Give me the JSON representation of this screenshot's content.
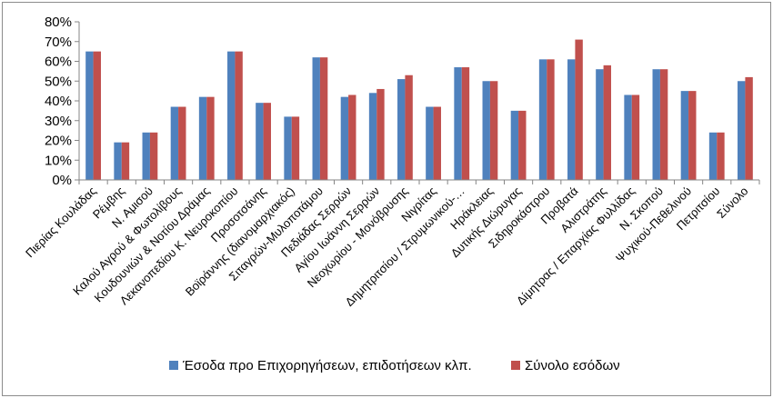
{
  "chart_data": {
    "type": "bar",
    "categories": [
      "Πιερίας Κουλάδας",
      "Ρέμβης",
      "Ν. Αμισού",
      "Καλού Αγρού & Φωτολίβους",
      "Κουδουνιών & Νοτίου Δράμας",
      "Λεκανοπεδίου Κ. Νευροκοπίου",
      "Προσοτσάνης",
      "Βοϊράννης (διανομαρχιακός)",
      "Σιταγρών-Μυλοποτάμου",
      "Πεδιάδας Σερρών",
      "Αγίου Ιωάννη Σερρών",
      "Νεοχωρίου - Μονόβρυσης",
      "Νιγρίτας",
      "Δημητριτσίου / Στρυμωνικού-…",
      "Ηράκλειας",
      "Δυτικής Διώρυγας",
      "Σιδηροκάστρου",
      "Προβατά",
      "Αλιστράτης",
      "Δίμητρας / Επαρχίας Φυλλίδας",
      "Ν. Σκοπού",
      "Ψυχικού-Πεθελινού",
      "Πετριτσίου",
      "Σύνολο"
    ],
    "series": [
      {
        "name": "Έσοδα προ Επιχορηγήσεων, επιδοτήσεων κλπ.",
        "color": "#4f81bd",
        "values": [
          65,
          19,
          24,
          37,
          42,
          65,
          39,
          32,
          62,
          42,
          44,
          51,
          37,
          57,
          50,
          35,
          61,
          61,
          56,
          43,
          56,
          45,
          24,
          50
        ]
      },
      {
        "name": "Σύνολο εσόδων",
        "color": "#c0504d",
        "values": [
          65,
          19,
          24,
          37,
          42,
          65,
          39,
          32,
          62,
          43,
          46,
          53,
          37,
          57,
          50,
          35,
          61,
          71,
          58,
          43,
          56,
          45,
          24,
          52
        ]
      }
    ],
    "ylim": [
      0,
      80
    ],
    "y_ticks": [
      "0%",
      "10%",
      "20%",
      "30%",
      "40%",
      "50%",
      "60%",
      "70%",
      "80%"
    ],
    "ytick_values": [
      0,
      10,
      20,
      30,
      40,
      50,
      60,
      70,
      80
    ],
    "grid": false,
    "legend": "bottom"
  }
}
